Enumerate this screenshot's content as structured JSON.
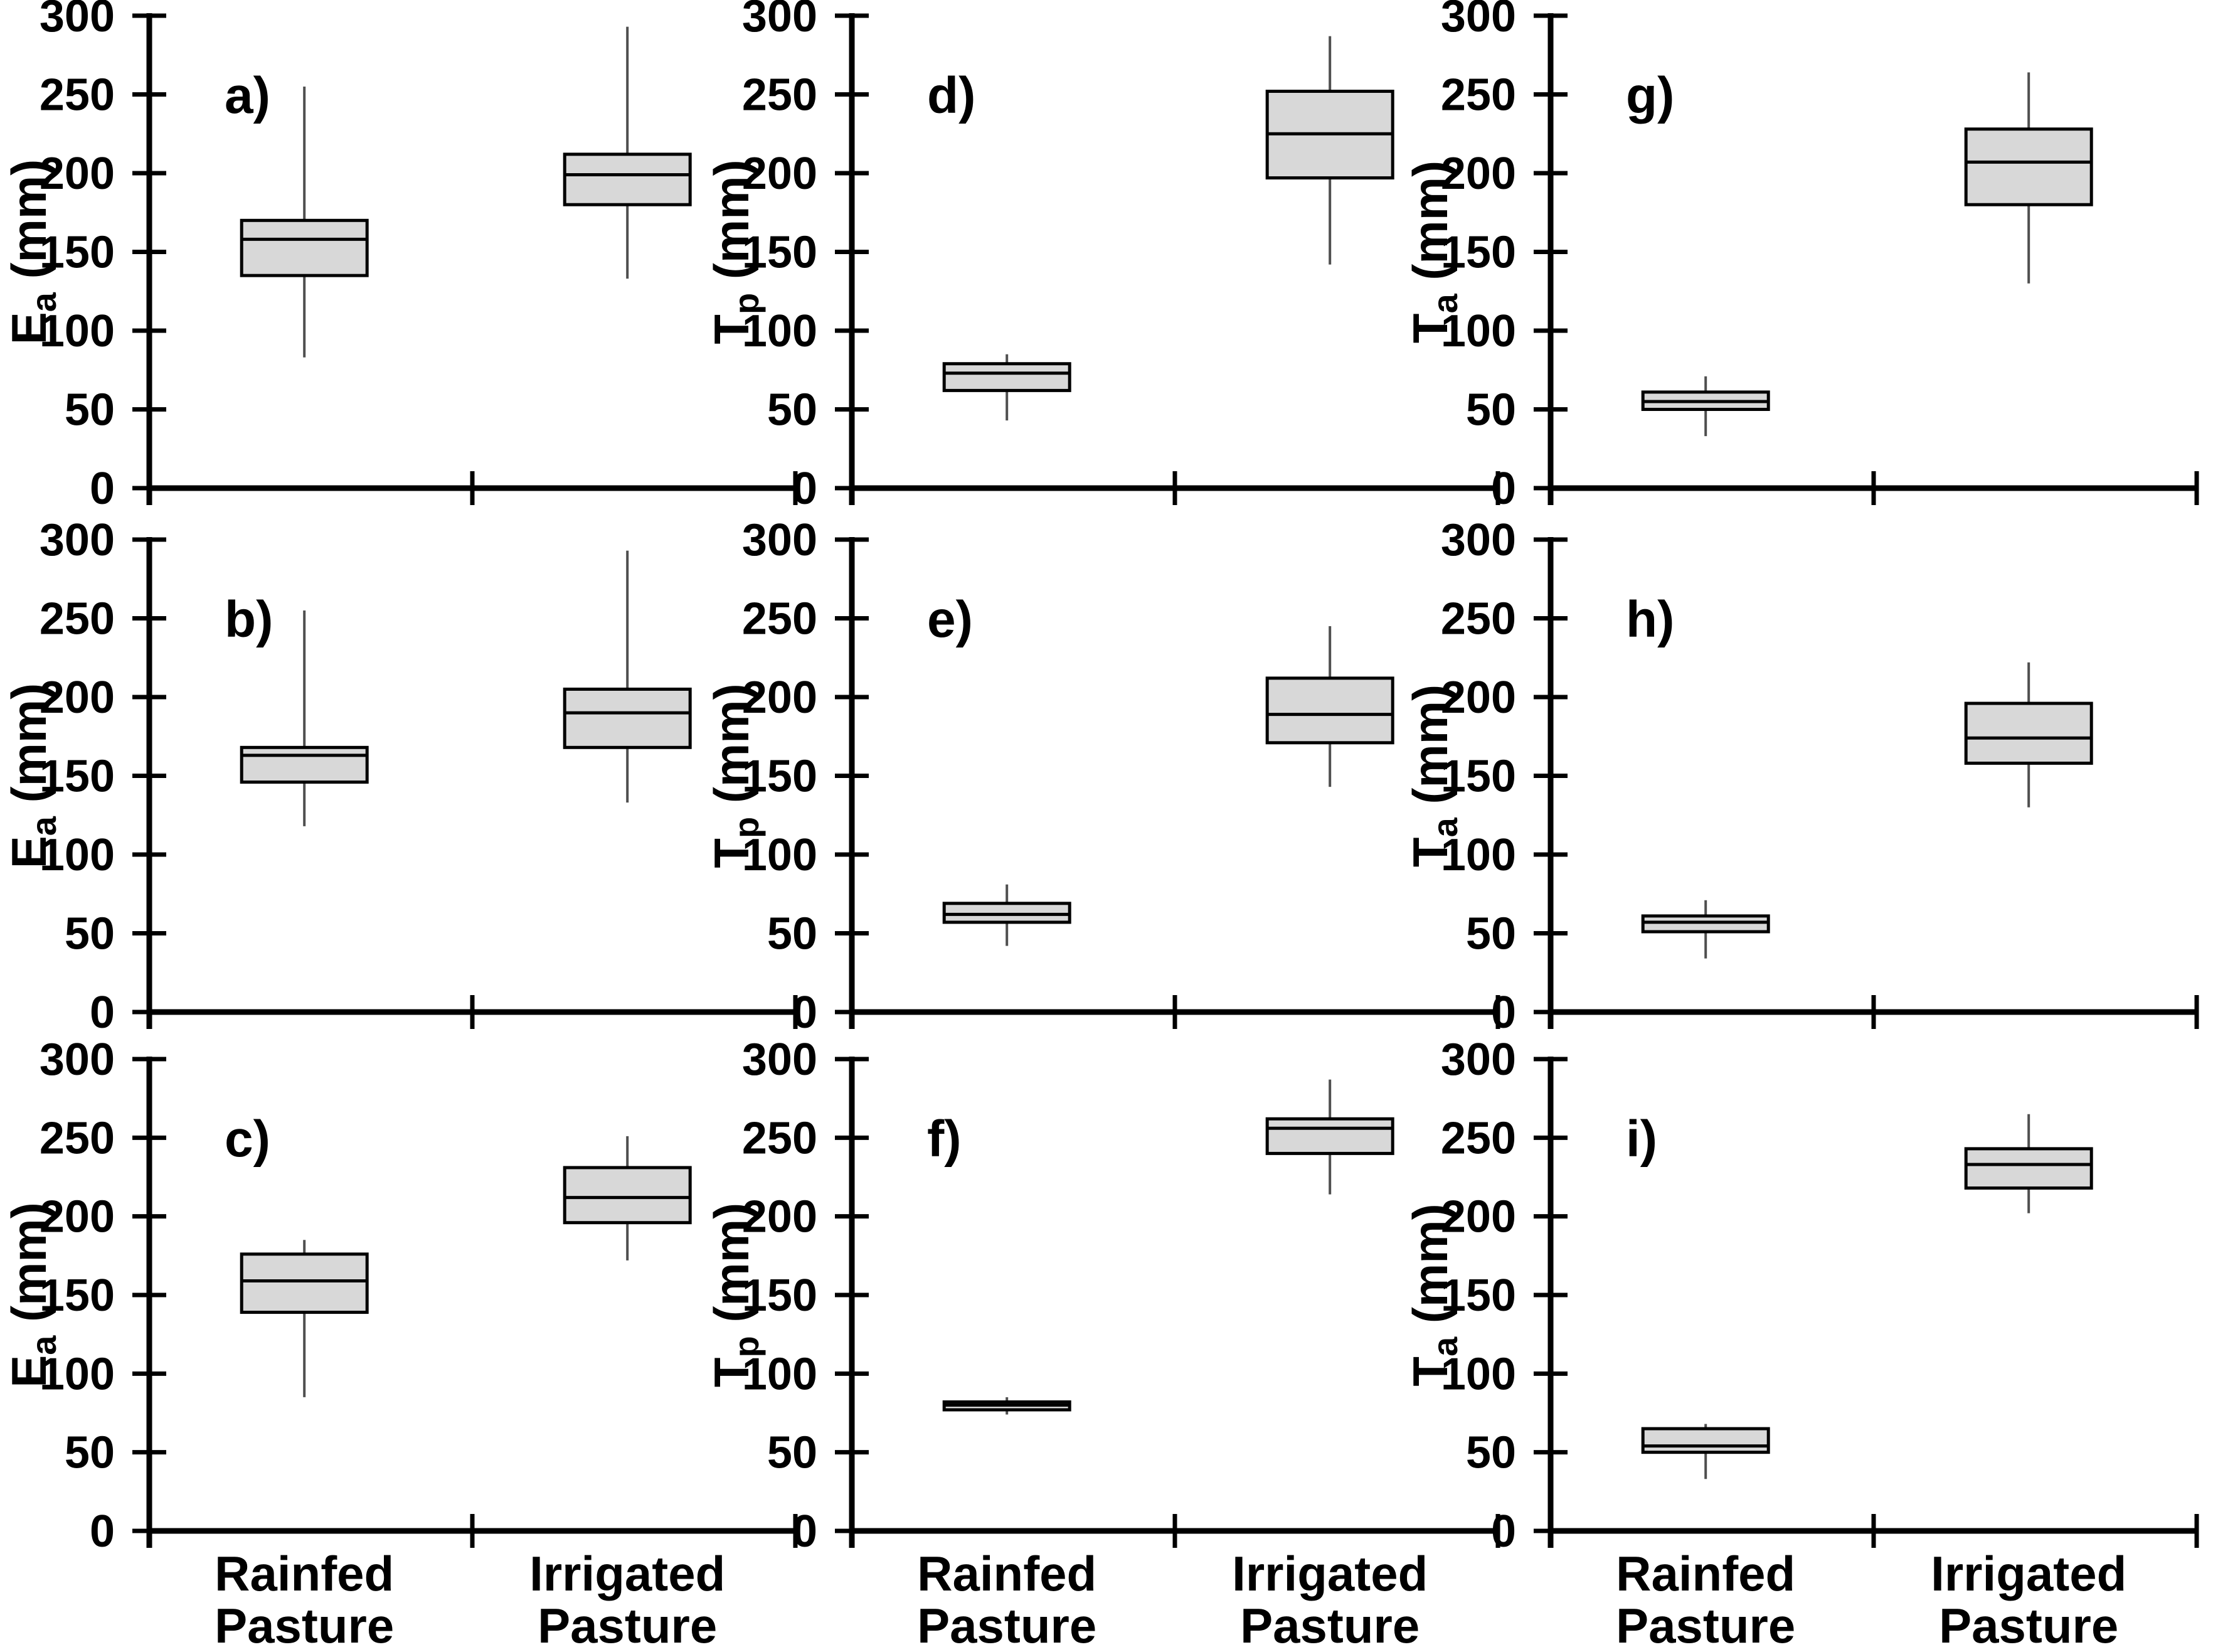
{
  "figure": {
    "background": "#ffffff",
    "description": "3x3 grid of box plots comparing Rainfed Pasture vs Irrigated Pasture"
  },
  "colors": {
    "box_fill": "#d8d8d8",
    "box_border": "#000000",
    "median": "#000000",
    "whisker": "#4f4f4f",
    "axis": "#000000",
    "text": "#000000"
  },
  "chart_data": {
    "type": "box",
    "ylim": [
      0,
      300
    ],
    "ytick_step": 50,
    "ytick_labels": [
      "0",
      "50",
      "100",
      "150",
      "200",
      "250",
      "300"
    ],
    "categories": [
      [
        "Rainfed",
        "Pasture"
      ],
      [
        "Irrigated",
        "Pasture"
      ]
    ],
    "panels": [
      {
        "panel_label": "a)",
        "col": 0,
        "row": 0,
        "ylabel_base": "E",
        "ylabel_sub": "a",
        "ylabel_unit": " (mm)",
        "series": [
          {
            "category": "Rainfed Pasture",
            "min": 83,
            "q1": 135,
            "median": 158,
            "q3": 170,
            "max": 255
          },
          {
            "category": "Irrigated Pasture",
            "min": 133,
            "q1": 180,
            "median": 199,
            "q3": 212,
            "max": 293
          }
        ]
      },
      {
        "panel_label": "b)",
        "col": 0,
        "row": 1,
        "ylabel_base": "E",
        "ylabel_sub": "a",
        "ylabel_unit": " (mm)",
        "series": [
          {
            "category": "Rainfed Pasture",
            "min": 118,
            "q1": 146,
            "median": 163,
            "q3": 168,
            "max": 255
          },
          {
            "category": "Irrigated Pasture",
            "min": 133,
            "q1": 168,
            "median": 190,
            "q3": 205,
            "max": 293
          }
        ]
      },
      {
        "panel_label": "c)",
        "col": 0,
        "row": 2,
        "ylabel_base": "E",
        "ylabel_sub": "a",
        "ylabel_unit": " (mm)",
        "series": [
          {
            "category": "Rainfed Pasture",
            "min": 85,
            "q1": 139,
            "median": 159,
            "q3": 176,
            "max": 185
          },
          {
            "category": "Irrigated Pasture",
            "min": 172,
            "q1": 196,
            "median": 212,
            "q3": 231,
            "max": 251
          }
        ]
      },
      {
        "panel_label": "d)",
        "col": 1,
        "row": 0,
        "ylabel_base": "T",
        "ylabel_sub": "p",
        "ylabel_unit": " (mm)",
        "series": [
          {
            "category": "Rainfed Pasture",
            "min": 43,
            "q1": 62,
            "median": 73,
            "q3": 79,
            "max": 85
          },
          {
            "category": "Irrigated Pasture",
            "min": 142,
            "q1": 197,
            "median": 225,
            "q3": 252,
            "max": 287
          }
        ]
      },
      {
        "panel_label": "e)",
        "col": 1,
        "row": 1,
        "ylabel_base": "T",
        "ylabel_sub": "p",
        "ylabel_unit": " (mm)",
        "series": [
          {
            "category": "Rainfed Pasture",
            "min": 42,
            "q1": 57,
            "median": 62,
            "q3": 69,
            "max": 81
          },
          {
            "category": "Irrigated Pasture",
            "min": 143,
            "q1": 171,
            "median": 189,
            "q3": 212,
            "max": 245
          }
        ]
      },
      {
        "panel_label": "f)",
        "col": 1,
        "row": 2,
        "ylabel_base": "T",
        "ylabel_sub": "p",
        "ylabel_unit": " (mm)",
        "series": [
          {
            "category": "Rainfed Pasture",
            "min": 74,
            "q1": 77,
            "median": 80,
            "q3": 82,
            "max": 85
          },
          {
            "category": "Irrigated Pasture",
            "min": 214,
            "q1": 240,
            "median": 256,
            "q3": 262,
            "max": 287
          }
        ]
      },
      {
        "panel_label": "g)",
        "col": 2,
        "row": 0,
        "ylabel_base": "T",
        "ylabel_sub": "a",
        "ylabel_unit": " (mm)",
        "series": [
          {
            "category": "Rainfed Pasture",
            "min": 33,
            "q1": 50,
            "median": 55,
            "q3": 61,
            "max": 71
          },
          {
            "category": "Irrigated Pasture",
            "min": 130,
            "q1": 180,
            "median": 207,
            "q3": 228,
            "max": 264
          }
        ]
      },
      {
        "panel_label": "h)",
        "col": 2,
        "row": 1,
        "ylabel_base": "T",
        "ylabel_sub": "a",
        "ylabel_unit": " (mm)",
        "series": [
          {
            "category": "Rainfed Pasture",
            "min": 34,
            "q1": 51,
            "median": 57,
            "q3": 61,
            "max": 71
          },
          {
            "category": "Irrigated Pasture",
            "min": 130,
            "q1": 158,
            "median": 174,
            "q3": 196,
            "max": 222
          }
        ]
      },
      {
        "panel_label": "i)",
        "col": 2,
        "row": 2,
        "ylabel_base": "T",
        "ylabel_sub": "a",
        "ylabel_unit": " (mm)",
        "series": [
          {
            "category": "Rainfed Pasture",
            "min": 33,
            "q1": 50,
            "median": 54,
            "q3": 65,
            "max": 68
          },
          {
            "category": "Irrigated Pasture",
            "min": 202,
            "q1": 218,
            "median": 233,
            "q3": 243,
            "max": 265
          }
        ]
      }
    ]
  }
}
